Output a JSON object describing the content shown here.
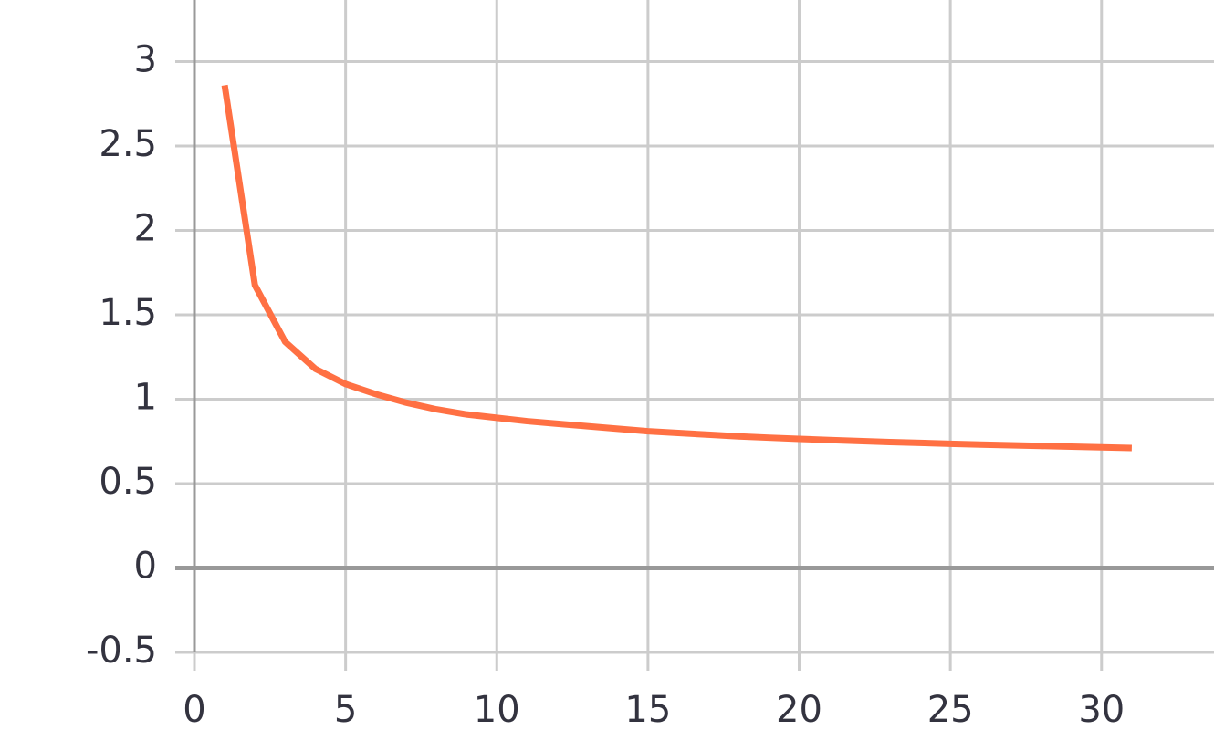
{
  "chart_data": {
    "type": "line",
    "x": [
      1,
      2,
      3,
      4,
      5,
      6,
      7,
      8,
      9,
      10,
      11,
      12,
      13,
      14,
      15,
      16,
      17,
      18,
      19,
      20,
      21,
      22,
      23,
      24,
      25,
      26,
      27,
      28,
      29,
      30,
      31
    ],
    "series": [
      {
        "color": "#ff7043",
        "values": [
          2.86,
          1.676,
          1.34,
          1.18,
          1.09,
          1.03,
          0.98,
          0.94,
          0.91,
          0.89,
          0.87,
          0.855,
          0.84,
          0.825,
          0.81,
          0.8,
          0.79,
          0.78,
          0.772,
          0.765,
          0.758,
          0.752,
          0.746,
          0.741,
          0.736,
          0.731,
          0.727,
          0.723,
          0.719,
          0.715,
          0.711
        ]
      }
    ],
    "xlim": [
      0,
      33.72
    ],
    "ylim": [
      -0.5,
      3.365
    ],
    "xticks": [
      0,
      5,
      10,
      15,
      20,
      25,
      30
    ],
    "yticks": [
      -0.5,
      0,
      0.5,
      1,
      1.5,
      2,
      2.5,
      3
    ],
    "grid": true
  }
}
